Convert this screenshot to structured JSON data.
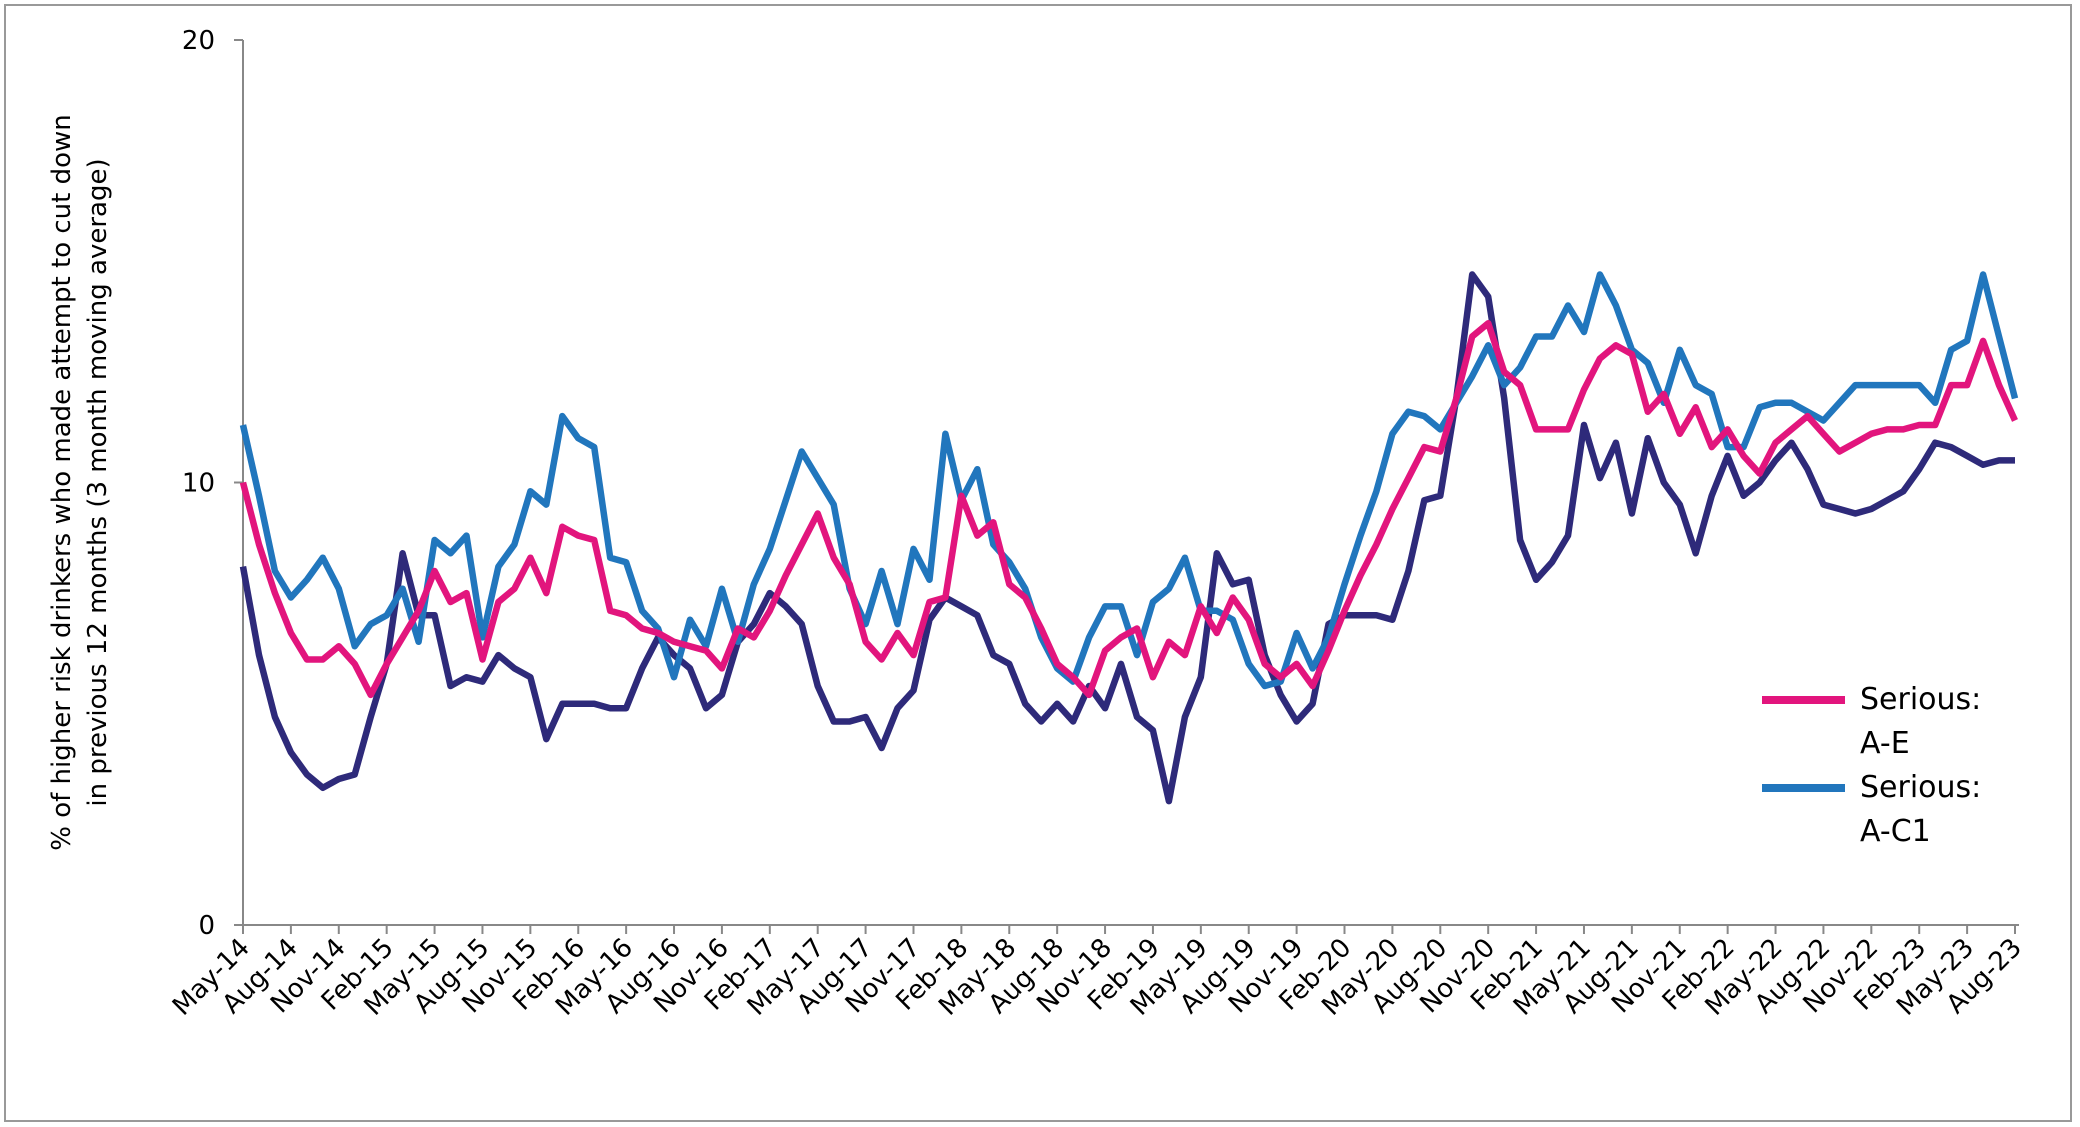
{
  "chart_data": {
    "type": "line",
    "y_label": [
      "% of higher risk drinkers who made attempt to cut down",
      "in previous 12 months (3 month moving average)"
    ],
    "categories": [
      "May-14",
      null,
      null,
      "Aug-14",
      null,
      null,
      "Nov-14",
      null,
      null,
      "Feb-15",
      null,
      null,
      "May-15",
      null,
      null,
      "Aug-15",
      null,
      null,
      "Nov-15",
      null,
      null,
      "Feb-16",
      null,
      null,
      "May-16",
      null,
      null,
      "Aug-16",
      null,
      null,
      "Nov-16",
      null,
      null,
      "Feb-17",
      null,
      null,
      "May-17",
      null,
      null,
      "Aug-17",
      null,
      null,
      "Nov-17",
      null,
      null,
      "Feb-18",
      null,
      null,
      "May-18",
      null,
      null,
      "Aug-18",
      null,
      null,
      "Nov-18",
      null,
      null,
      "Feb-19",
      null,
      null,
      "May-19",
      null,
      null,
      "Aug-19",
      null,
      null,
      "Nov-19",
      null,
      null,
      "Feb-20",
      null,
      null,
      "May-20",
      null,
      null,
      "Aug-20",
      null,
      null,
      "Nov-20",
      null,
      null,
      "Feb-21",
      null,
      null,
      "May-21",
      null,
      null,
      "Aug-21",
      null,
      null,
      "Nov-21",
      null,
      null,
      "Feb-22",
      null,
      null,
      "May-22",
      null,
      null,
      "Aug-22",
      null,
      null,
      "Nov-22",
      null,
      null,
      "Feb-23",
      null,
      null,
      "May-23",
      null,
      null,
      "Aug-23"
    ],
    "series": [
      {
        "name": "Serious: A-E",
        "color": "#e2157d",
        "values": [
          10.0,
          8.6,
          7.5,
          6.6,
          6.0,
          6.0,
          6.3,
          5.9,
          5.2,
          5.9,
          6.5,
          7.1,
          8.0,
          7.3,
          7.5,
          6.0,
          7.3,
          7.6,
          8.3,
          7.5,
          9.0,
          8.8,
          8.7,
          7.1,
          7.0,
          6.7,
          6.6,
          6.4,
          6.3,
          6.2,
          5.8,
          6.7,
          6.5,
          7.1,
          7.9,
          8.6,
          9.3,
          8.3,
          7.7,
          6.4,
          6.0,
          6.6,
          6.1,
          7.3,
          7.4,
          9.7,
          8.8,
          9.1,
          7.7,
          7.4,
          6.7,
          5.9,
          5.6,
          5.2,
          6.2,
          6.5,
          6.7,
          5.6,
          6.4,
          6.1,
          7.2,
          6.6,
          7.4,
          6.9,
          5.9,
          5.6,
          5.9,
          5.4,
          6.2,
          7.1,
          7.9,
          8.6,
          9.4,
          10.1,
          10.8,
          10.7,
          11.9,
          13.3,
          13.6,
          12.5,
          12.2,
          11.2,
          11.2,
          11.2,
          12.1,
          12.8,
          13.1,
          12.9,
          11.6,
          12.0,
          11.1,
          11.7,
          10.8,
          11.2,
          10.6,
          10.2,
          10.9,
          11.2,
          11.5,
          11.1,
          10.7,
          10.9,
          11.1,
          11.2,
          11.2,
          11.3,
          11.3,
          12.2,
          12.2,
          13.2,
          12.2,
          11.4
        ]
      },
      {
        "name": "Serious: A-C1",
        "color": "#2176bd",
        "values": [
          11.3,
          9.7,
          8.0,
          7.4,
          7.8,
          8.3,
          7.6,
          6.3,
          6.8,
          7.0,
          7.6,
          6.4,
          8.7,
          8.4,
          8.8,
          6.5,
          8.1,
          8.6,
          9.8,
          9.5,
          11.5,
          11.0,
          10.8,
          8.3,
          8.2,
          7.1,
          6.7,
          5.6,
          6.9,
          6.3,
          7.6,
          6.4,
          7.7,
          8.5,
          9.6,
          10.7,
          10.1,
          9.5,
          7.6,
          6.8,
          8.0,
          6.8,
          8.5,
          7.8,
          11.1,
          9.6,
          10.3,
          8.6,
          8.2,
          7.6,
          6.5,
          5.8,
          5.5,
          6.5,
          7.2,
          7.2,
          6.1,
          7.3,
          7.6,
          8.3,
          7.1,
          7.1,
          6.9,
          5.9,
          5.4,
          5.5,
          6.6,
          5.8,
          6.5,
          7.7,
          8.8,
          9.8,
          11.1,
          11.6,
          11.5,
          11.2,
          11.8,
          12.4,
          13.1,
          12.2,
          12.6,
          13.3,
          13.3,
          14.0,
          13.4,
          14.7,
          14.0,
          13.0,
          12.7,
          11.8,
          13.0,
          12.2,
          12.0,
          10.8,
          10.8,
          11.7,
          11.8,
          11.8,
          11.6,
          11.4,
          11.8,
          12.2,
          12.2,
          12.2,
          12.2,
          12.2,
          11.8,
          13.0,
          13.2,
          14.7,
          13.3,
          11.9
        ]
      },
      {
        "color": "#2e2a7a",
        "values": [
          8.1,
          6.1,
          4.7,
          3.9,
          3.4,
          3.1,
          3.3,
          3.4,
          4.7,
          5.9,
          8.4,
          7.0,
          7.0,
          5.4,
          5.6,
          5.5,
          6.1,
          5.8,
          5.6,
          4.2,
          5.0,
          5.0,
          5.0,
          4.9,
          4.9,
          5.8,
          6.5,
          6.1,
          5.8,
          4.9,
          5.2,
          6.4,
          6.8,
          7.5,
          7.2,
          6.8,
          5.4,
          4.6,
          4.6,
          4.7,
          4.0,
          4.9,
          5.3,
          6.9,
          7.4,
          7.2,
          7.0,
          6.1,
          5.9,
          5.0,
          4.6,
          5.0,
          4.6,
          5.4,
          4.9,
          5.9,
          4.7,
          4.4,
          2.8,
          4.7,
          5.6,
          8.4,
          7.7,
          7.8,
          6.1,
          5.2,
          4.6,
          5.0,
          6.8,
          7.0,
          7.0,
          7.0,
          6.9,
          8.0,
          9.6,
          9.7,
          11.9,
          14.7,
          14.2,
          11.9,
          8.7,
          7.8,
          8.2,
          8.8,
          11.3,
          10.1,
          10.9,
          9.3,
          11.0,
          10.0,
          9.5,
          8.4,
          9.7,
          10.6,
          9.7,
          10.0,
          10.5,
          10.9,
          10.3,
          9.5,
          9.4,
          9.3,
          9.4,
          9.6,
          9.8,
          10.3,
          10.9,
          10.8,
          10.6,
          10.4,
          10.5,
          10.5
        ]
      }
    ],
    "ylim": [
      0,
      20
    ],
    "yticks": [
      0,
      10,
      20
    ],
    "grid": false,
    "legend": "right"
  }
}
